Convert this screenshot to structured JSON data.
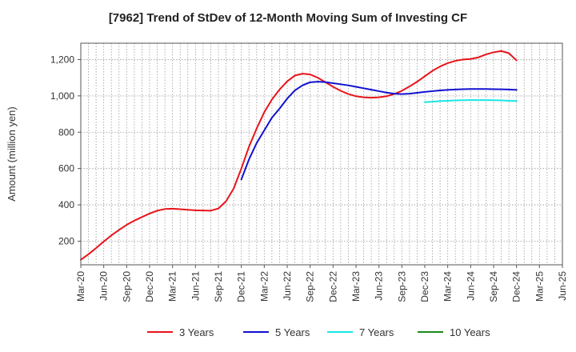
{
  "chart_data": {
    "type": "line",
    "title": "[7962]  Trend of StDev of 12-Month Moving Sum of Investing CF",
    "xlabel": "",
    "ylabel": "Amount (million yen)",
    "ylim": [
      70,
      1290
    ],
    "yticks": [
      200,
      400,
      600,
      800,
      1000,
      1200
    ],
    "ytick_labels": [
      "200",
      "400",
      "600",
      "800",
      "1,000",
      "1,200"
    ],
    "x_tick_labels": [
      "Mar-20",
      "Jun-20",
      "Sep-20",
      "Dec-20",
      "Mar-21",
      "Jun-21",
      "Sep-21",
      "Dec-21",
      "Mar-22",
      "Jun-22",
      "Sep-22",
      "Dec-22",
      "Mar-23",
      "Jun-23",
      "Sep-23",
      "Dec-23",
      "Mar-24",
      "Jun-24",
      "Sep-24",
      "Dec-24",
      "Mar-25",
      "Jun-25"
    ],
    "grid": true,
    "legend_position": "bottom",
    "series": [
      {
        "name": "3 Years",
        "color": "#e8141b",
        "points": [
          [
            "Mar-20",
            98
          ],
          [
            "Apr-20",
            128
          ],
          [
            "May-20",
            162
          ],
          [
            "Jun-20",
            198
          ],
          [
            "Jul-20",
            232
          ],
          [
            "Aug-20",
            262
          ],
          [
            "Sep-20",
            290
          ],
          [
            "Oct-20",
            313
          ],
          [
            "Nov-20",
            333
          ],
          [
            "Dec-20",
            352
          ],
          [
            "Jan-21",
            368
          ],
          [
            "Feb-21",
            377
          ],
          [
            "Mar-21",
            379
          ],
          [
            "Apr-21",
            376
          ],
          [
            "May-21",
            373
          ],
          [
            "Jun-21",
            370
          ],
          [
            "Jul-21",
            369
          ],
          [
            "Aug-21",
            368
          ],
          [
            "Sep-21",
            380
          ],
          [
            "Oct-21",
            420
          ],
          [
            "Nov-21",
            490
          ],
          [
            "Dec-21",
            600
          ],
          [
            "Jan-22",
            720
          ],
          [
            "Feb-22",
            820
          ],
          [
            "Mar-22",
            910
          ],
          [
            "Apr-22",
            980
          ],
          [
            "May-22",
            1035
          ],
          [
            "Jun-22",
            1080
          ],
          [
            "Jul-22",
            1112
          ],
          [
            "Aug-22",
            1122
          ],
          [
            "Sep-22",
            1118
          ],
          [
            "Oct-22",
            1100
          ],
          [
            "Nov-22",
            1075
          ],
          [
            "Dec-22",
            1050
          ],
          [
            "Jan-23",
            1028
          ],
          [
            "Feb-23",
            1010
          ],
          [
            "Mar-23",
            998
          ],
          [
            "Apr-23",
            992
          ],
          [
            "May-23",
            990
          ],
          [
            "Jun-23",
            992
          ],
          [
            "Jul-23",
            998
          ],
          [
            "Aug-23",
            1010
          ],
          [
            "Sep-23",
            1028
          ],
          [
            "Oct-23",
            1052
          ],
          [
            "Nov-23",
            1078
          ],
          [
            "Dec-23",
            1108
          ],
          [
            "Jan-24",
            1138
          ],
          [
            "Feb-24",
            1162
          ],
          [
            "Mar-24",
            1180
          ],
          [
            "Apr-24",
            1193
          ],
          [
            "May-24",
            1200
          ],
          [
            "Jun-24",
            1203
          ],
          [
            "Jul-24",
            1212
          ],
          [
            "Aug-24",
            1228
          ],
          [
            "Sep-24",
            1240
          ],
          [
            "Oct-24",
            1247
          ],
          [
            "Nov-24",
            1235
          ],
          [
            "Dec-24",
            1195
          ]
        ]
      },
      {
        "name": "5 Years",
        "color": "#1010d0",
        "points": [
          [
            "Dec-21",
            540
          ],
          [
            "Jan-22",
            650
          ],
          [
            "Feb-22",
            740
          ],
          [
            "Mar-22",
            810
          ],
          [
            "Apr-22",
            880
          ],
          [
            "May-22",
            930
          ],
          [
            "Jun-22",
            985
          ],
          [
            "Jul-22",
            1030
          ],
          [
            "Aug-22",
            1058
          ],
          [
            "Sep-22",
            1075
          ],
          [
            "Oct-22",
            1078
          ],
          [
            "Nov-22",
            1076
          ],
          [
            "Dec-22",
            1070
          ],
          [
            "Jan-23",
            1064
          ],
          [
            "Feb-23",
            1058
          ],
          [
            "Mar-23",
            1050
          ],
          [
            "Apr-23",
            1042
          ],
          [
            "May-23",
            1034
          ],
          [
            "Jun-23",
            1026
          ],
          [
            "Jul-23",
            1018
          ],
          [
            "Aug-23",
            1012
          ],
          [
            "Sep-23",
            1010
          ],
          [
            "Oct-23",
            1012
          ],
          [
            "Nov-23",
            1017
          ],
          [
            "Dec-23",
            1022
          ],
          [
            "Jan-24",
            1026
          ],
          [
            "Feb-24",
            1030
          ],
          [
            "Mar-24",
            1033
          ],
          [
            "Apr-24",
            1035
          ],
          [
            "May-24",
            1037
          ],
          [
            "Jun-24",
            1038
          ],
          [
            "Jul-24",
            1038
          ],
          [
            "Aug-24",
            1038
          ],
          [
            "Sep-24",
            1037
          ],
          [
            "Oct-24",
            1036
          ],
          [
            "Nov-24",
            1035
          ],
          [
            "Dec-24",
            1033
          ]
        ]
      },
      {
        "name": "7 Years",
        "color": "#19e6e6",
        "points": [
          [
            "Dec-23",
            965
          ],
          [
            "Jan-24",
            968
          ],
          [
            "Feb-24",
            971
          ],
          [
            "Mar-24",
            973
          ],
          [
            "Apr-24",
            975
          ],
          [
            "May-24",
            976
          ],
          [
            "Jun-24",
            977
          ],
          [
            "Jul-24",
            977
          ],
          [
            "Aug-24",
            977
          ],
          [
            "Sep-24",
            976
          ],
          [
            "Oct-24",
            975
          ],
          [
            "Nov-24",
            973
          ],
          [
            "Dec-24",
            972
          ]
        ]
      },
      {
        "name": "10 Years",
        "color": "#1a8a1a",
        "points": []
      }
    ]
  }
}
